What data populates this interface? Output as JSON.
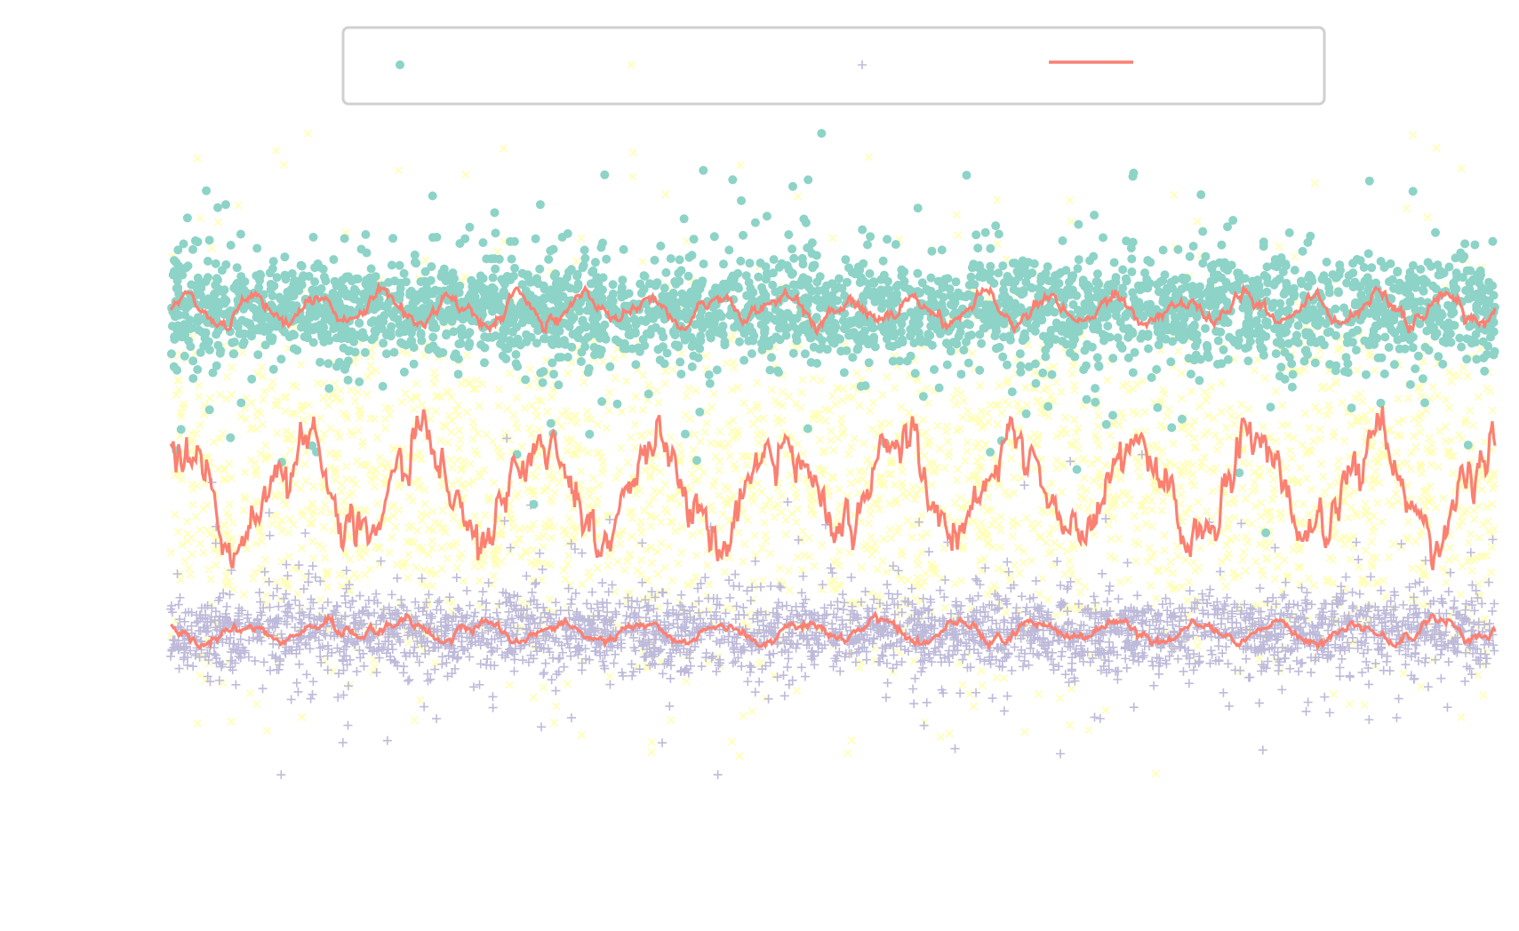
{
  "chart_data": {
    "type": "scatter",
    "title": "",
    "xlabel": "",
    "ylabel": "",
    "xlim": [
      0,
      1000
    ],
    "ylim": [
      0,
      100
    ],
    "grid": false,
    "legend_placement": "top-center",
    "series": [
      {
        "marker": "circle",
        "color": "#8dd3c7",
        "approx_level": 72,
        "approx_spread": 4,
        "approx_points": 3000
      },
      {
        "marker": "x",
        "color": "#ffffb3",
        "approx_level": 45,
        "approx_spread": 13,
        "approx_points": 3000
      },
      {
        "marker": "plus",
        "color": "#bebada",
        "approx_level": 23,
        "approx_spread": 3,
        "approx_points": 3000
      },
      {
        "marker": "line",
        "color": "#fb8072",
        "description_levels": [
          72,
          45,
          23
        ]
      }
    ],
    "trend_lines": [
      {
        "color": "#fb8072",
        "level": 72,
        "amplitude": 2,
        "period": 50
      },
      {
        "color": "#fb8072",
        "level": 45,
        "amplitude": 7,
        "period": 90
      },
      {
        "color": "#fb8072",
        "level": 23,
        "amplitude": 1.5,
        "period": 60
      }
    ]
  },
  "legend": {
    "entries": [
      {
        "marker": "circle",
        "color": "#8dd3c7"
      },
      {
        "marker": "x",
        "color": "#ffffb3"
      },
      {
        "marker": "plus",
        "color": "#bebada"
      },
      {
        "marker": "line",
        "color": "#fb8072"
      }
    ]
  }
}
